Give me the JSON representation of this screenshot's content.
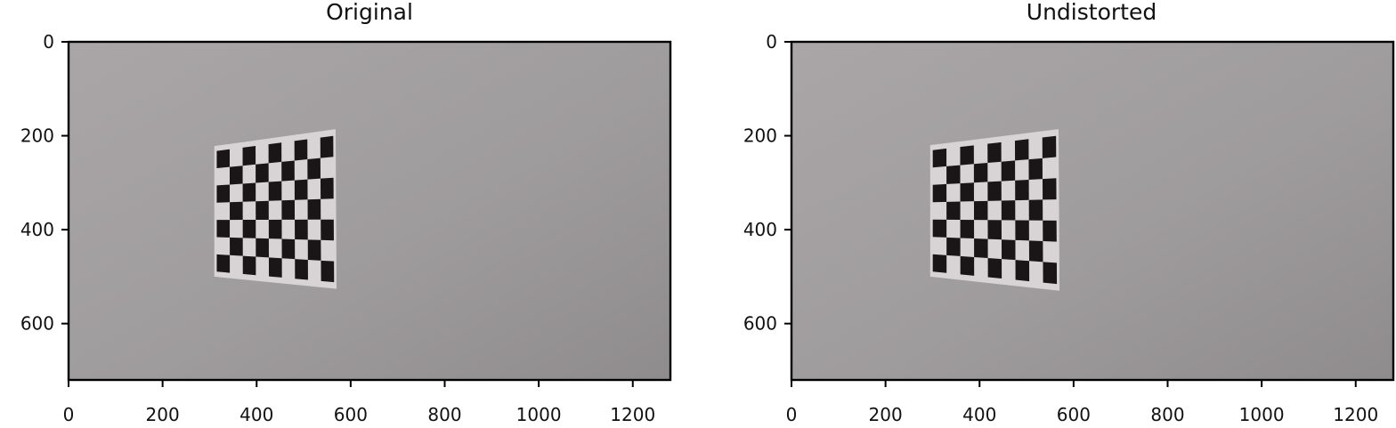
{
  "panels": [
    {
      "title": "Original",
      "image_desc_name": "original-photo",
      "x_ticks": [
        "0",
        "200",
        "400",
        "600",
        "800",
        "1000",
        "1200"
      ],
      "y_ticks": [
        "0",
        "200",
        "400",
        "600"
      ],
      "x_extent": [
        0,
        1280
      ],
      "y_extent": [
        720,
        0
      ],
      "board_corners_data": [
        [
          310,
          222
        ],
        [
          568,
          186
        ],
        [
          570,
          526
        ],
        [
          310,
          500
        ]
      ]
    },
    {
      "title": "Undistorted",
      "image_desc_name": "undistorted-photo",
      "x_ticks": [
        "0",
        "200",
        "400",
        "600",
        "800",
        "1000",
        "1200"
      ],
      "y_ticks": [
        "0",
        "200",
        "400",
        "600"
      ],
      "x_extent": [
        0,
        1280
      ],
      "y_extent": [
        720,
        0
      ],
      "board_corners_data": [
        [
          295,
          220
        ],
        [
          568,
          186
        ],
        [
          570,
          530
        ],
        [
          295,
          500
        ]
      ]
    }
  ],
  "colors": {
    "wall_light": "#aaa6a8",
    "wall_mid": "#9f9c9d",
    "wall_dark": "#8f8c8e",
    "paper": "#d8d4d6",
    "square": "#1a1617"
  }
}
